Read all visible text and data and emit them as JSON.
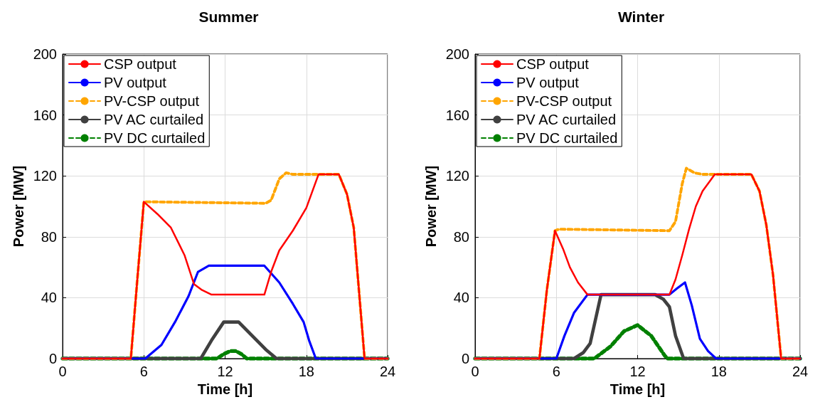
{
  "chart_data": [
    {
      "type": "line",
      "title": "Summer",
      "xlabel": "Time [h]",
      "ylabel": "Power [MW]",
      "xlim": [
        0,
        24
      ],
      "xticks": [
        0,
        6,
        12,
        18,
        24
      ],
      "ylim": [
        0,
        200
      ],
      "yticks": [
        0,
        40,
        80,
        120,
        160,
        200
      ],
      "grid": true,
      "legend": "top left",
      "marker": "none",
      "series": [
        {
          "name": "CSP output",
          "color": "#ff0000",
          "line_style": "solid",
          "x": [
            0,
            5.04,
            5.5,
            6,
            7,
            8,
            9,
            9.7,
            10.3,
            11,
            14.9,
            15.4,
            16,
            17,
            18,
            18.9,
            20.4,
            21,
            21.5,
            22.3,
            24
          ],
          "values": [
            0,
            0,
            50,
            103,
            95,
            86,
            68,
            49,
            45,
            42,
            42,
            57,
            71,
            84,
            99,
            121,
            121,
            108,
            86,
            0,
            0
          ]
        },
        {
          "name": "PV output",
          "color": "#0000ff",
          "line_style": "solid",
          "x": [
            0,
            6.1,
            7.3,
            8.3,
            9.3,
            10,
            10.8,
            14.9,
            16,
            17,
            17.8,
            18.2,
            18.7,
            24
          ],
          "values": [
            0,
            0,
            9,
            24,
            41,
            57,
            61,
            61,
            50,
            36,
            24,
            12,
            0,
            0
          ]
        },
        {
          "name": "PV-CSP output",
          "color": "#ffa500",
          "line_style": "dashed",
          "x": [
            0,
            5.04,
            5.5,
            6,
            15,
            15.4,
            16,
            16.5,
            17,
            20.4,
            21,
            21.5,
            22.3,
            24
          ],
          "values": [
            0,
            0,
            50,
            103,
            102,
            104,
            118,
            122,
            121,
            121,
            108,
            86,
            0,
            0
          ]
        },
        {
          "name": "PV AC curtailed",
          "color": "#404040",
          "line_style": "solid",
          "x": [
            0,
            10.2,
            11,
            11.9,
            13,
            14,
            15,
            15.8,
            24
          ],
          "values": [
            0,
            0,
            12,
            24,
            24,
            15,
            6,
            0,
            0
          ]
        },
        {
          "name": "PV DC curtailed",
          "color": "#008000",
          "line_style": "dashed",
          "x": [
            0,
            11.4,
            11.9,
            12.4,
            12.8,
            13.2,
            13.6,
            24
          ],
          "values": [
            0,
            0,
            3,
            5,
            5,
            3,
            0,
            0
          ]
        }
      ]
    },
    {
      "type": "line",
      "title": "Winter",
      "xlabel": "Time [h]",
      "ylabel": "Power [MW]",
      "xlim": [
        0,
        24
      ],
      "xticks": [
        0,
        6,
        12,
        18,
        24
      ],
      "ylim": [
        0,
        200
      ],
      "yticks": [
        0,
        40,
        80,
        120,
        160,
        200
      ],
      "grid": true,
      "legend": "top left",
      "marker": "none",
      "series": [
        {
          "name": "CSP output",
          "color": "#ff0000",
          "line_style": "solid",
          "x": [
            0,
            4.75,
            5.3,
            5.9,
            6.5,
            7,
            7.6,
            8.3,
            14.35,
            14.8,
            15.3,
            15.8,
            16.3,
            16.8,
            17.7,
            20.4,
            21,
            21.5,
            22,
            22.6,
            24
          ],
          "values": [
            0,
            0,
            45,
            84,
            72,
            60,
            50,
            42,
            42,
            52,
            68,
            85,
            100,
            110,
            121,
            121,
            110,
            88,
            55,
            0,
            0
          ]
        },
        {
          "name": "PV output",
          "color": "#0000ff",
          "line_style": "solid",
          "x": [
            0,
            6,
            6.6,
            7.3,
            8.3,
            14.35,
            14.9,
            15.5,
            16,
            16.6,
            17.2,
            17.8,
            24
          ],
          "values": [
            0,
            0,
            15,
            30,
            42,
            42,
            46,
            50,
            35,
            13,
            5,
            0,
            0
          ]
        },
        {
          "name": "PV-CSP output",
          "color": "#ffa500",
          "line_style": "dashed",
          "x": [
            0,
            4.75,
            5.3,
            5.9,
            6.2,
            14.35,
            14.8,
            15.3,
            15.6,
            16.2,
            16.8,
            17.7,
            20.4,
            21,
            21.5,
            22,
            22.6,
            24
          ],
          "values": [
            0,
            0,
            45,
            84,
            85,
            84,
            90,
            115,
            125,
            122,
            121,
            121,
            121,
            110,
            88,
            55,
            0,
            0
          ]
        },
        {
          "name": "PV AC curtailed",
          "color": "#404040",
          "line_style": "solid",
          "x": [
            0,
            7.3,
            8,
            8.5,
            9,
            9.3,
            13.3,
            13.9,
            14.35,
            14.8,
            15.4,
            24
          ],
          "values": [
            0,
            0,
            4,
            10,
            30,
            42,
            42,
            39,
            34,
            15,
            0,
            0
          ]
        },
        {
          "name": "PV DC curtailed",
          "color": "#008000",
          "line_style": "dashed",
          "x": [
            0,
            8.8,
            10,
            11,
            12,
            13,
            14,
            14.2,
            24
          ],
          "values": [
            0,
            0,
            8,
            18,
            22,
            15,
            2,
            0,
            0
          ]
        }
      ]
    }
  ]
}
